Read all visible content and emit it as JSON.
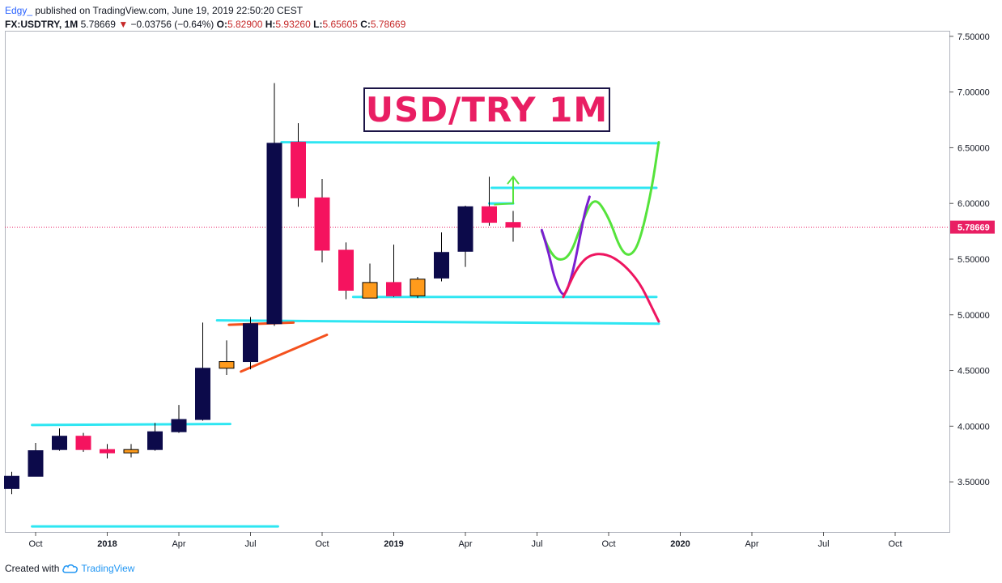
{
  "header": {
    "author": "Edgy_",
    "published_text": "published on TradingView.com, June 19, 2019 22:50:20 CEST",
    "symbol": "FX:USDTRY, 1M",
    "last": "5.78669",
    "change": "−0.03756 (−0.64%)",
    "open_label": "O:",
    "open": "5.82900",
    "high_label": "H:",
    "high": "5.93260",
    "low_label": "L:",
    "low": "5.65605",
    "close_label": "C:",
    "close": "5.78669"
  },
  "footer": {
    "created_with": "Created with",
    "brand": "TradingView"
  },
  "colors": {
    "bull": "#0c0a4a",
    "bear": "#f5135f",
    "neutral": "#ff9b1c",
    "support": "#2ee6f2",
    "trend": "#f4511e",
    "green_path": "#55e33b",
    "purple_path": "#7b1fd1",
    "red_path": "#ee1560",
    "last_price": "#e91e63"
  },
  "chart_data": {
    "type": "candlestick",
    "title": "USD/TRY 1M",
    "symbol": "FX:USDTRY",
    "timeframe": "1M",
    "y_range": [
      3.05,
      7.55
    ],
    "y_ticks": [
      "3.50000",
      "4.00000",
      "4.50000",
      "5.00000",
      "5.50000",
      "6.00000",
      "6.50000",
      "7.00000",
      "7.50000"
    ],
    "x_tick_labels": [
      {
        "label": "Oct",
        "bold": false,
        "month_index": 0
      },
      {
        "label": "2018",
        "bold": true,
        "month_index": 3
      },
      {
        "label": "Apr",
        "bold": false,
        "month_index": 6
      },
      {
        "label": "Jul",
        "bold": false,
        "month_index": 9
      },
      {
        "label": "Oct",
        "bold": false,
        "month_index": 12
      },
      {
        "label": "2019",
        "bold": true,
        "month_index": 15
      },
      {
        "label": "Apr",
        "bold": false,
        "month_index": 18
      },
      {
        "label": "Jul",
        "bold": false,
        "month_index": 21
      },
      {
        "label": "Oct",
        "bold": false,
        "month_index": 24
      },
      {
        "label": "2020",
        "bold": true,
        "month_index": 27
      },
      {
        "label": "Apr",
        "bold": false,
        "month_index": 30
      },
      {
        "label": "Jul",
        "bold": false,
        "month_index": 33
      },
      {
        "label": "Oct",
        "bold": false,
        "month_index": 36
      }
    ],
    "last_price": 5.78669,
    "last_price_label": "5.78669",
    "candles": [
      {
        "date": "2017-09",
        "o": 3.44,
        "h": 3.59,
        "l": 3.39,
        "c": 3.55
      },
      {
        "date": "2017-10",
        "o": 3.55,
        "h": 3.85,
        "l": 3.55,
        "c": 3.78
      },
      {
        "date": "2017-11",
        "o": 3.79,
        "h": 3.98,
        "l": 3.78,
        "c": 3.91
      },
      {
        "date": "2017-12",
        "o": 3.91,
        "h": 3.94,
        "l": 3.77,
        "c": 3.79
      },
      {
        "date": "2018-01",
        "o": 3.79,
        "h": 3.84,
        "l": 3.71,
        "c": 3.76
      },
      {
        "date": "2018-02",
        "o": 3.76,
        "h": 3.84,
        "l": 3.72,
        "c": 3.79
      },
      {
        "date": "2018-03",
        "o": 3.79,
        "h": 4.03,
        "l": 3.78,
        "c": 3.95
      },
      {
        "date": "2018-04",
        "o": 3.95,
        "h": 4.19,
        "l": 3.94,
        "c": 4.06
      },
      {
        "date": "2018-05",
        "o": 4.06,
        "h": 4.93,
        "l": 4.05,
        "c": 4.52
      },
      {
        "date": "2018-06",
        "o": 4.52,
        "h": 4.77,
        "l": 4.46,
        "c": 4.58
      },
      {
        "date": "2018-07",
        "o": 4.58,
        "h": 4.98,
        "l": 4.51,
        "c": 4.92
      },
      {
        "date": "2018-08",
        "o": 4.92,
        "h": 7.08,
        "l": 4.9,
        "c": 6.54
      },
      {
        "date": "2018-09",
        "o": 6.55,
        "h": 6.72,
        "l": 5.97,
        "c": 6.05
      },
      {
        "date": "2018-10",
        "o": 6.05,
        "h": 6.22,
        "l": 5.47,
        "c": 5.58
      },
      {
        "date": "2018-11",
        "o": 5.58,
        "h": 5.65,
        "l": 5.14,
        "c": 5.22
      },
      {
        "date": "2018-12",
        "o": 5.29,
        "h": 5.46,
        "l": 5.15,
        "c": 5.15
      },
      {
        "date": "2019-01",
        "o": 5.29,
        "h": 5.63,
        "l": 5.16,
        "c": 5.17
      },
      {
        "date": "2019-02",
        "o": 5.17,
        "h": 5.34,
        "l": 5.15,
        "c": 5.32
      },
      {
        "date": "2019-03",
        "o": 5.33,
        "h": 5.74,
        "l": 5.3,
        "c": 5.56
      },
      {
        "date": "2019-04",
        "o": 5.57,
        "h": 5.98,
        "l": 5.43,
        "c": 5.97
      },
      {
        "date": "2019-05",
        "o": 5.97,
        "h": 6.24,
        "l": 5.8,
        "c": 5.83
      },
      {
        "date": "2019-06",
        "o": 5.829,
        "h": 5.9326,
        "l": 5.65605,
        "c": 5.78669
      }
    ],
    "support_lines": [
      {
        "name": "base-support",
        "points": [
          [
            -0.15,
            3.1
          ],
          [
            10.15,
            3.1
          ]
        ]
      },
      {
        "name": "2017-resistance",
        "points": [
          [
            -0.15,
            4.01
          ],
          [
            8.15,
            4.02
          ]
        ]
      },
      {
        "name": "breakout-level",
        "points": [
          [
            7.6,
            4.95
          ],
          [
            26.1,
            4.92
          ]
        ]
      },
      {
        "name": "range-top",
        "points": [
          [
            10.3,
            6.55
          ],
          [
            26.1,
            6.54
          ]
        ]
      },
      {
        "name": "range-bottom",
        "points": [
          [
            13.3,
            5.16
          ],
          [
            26.0,
            5.16
          ]
        ]
      },
      {
        "name": "mid-resistance",
        "points": [
          [
            19.1,
            6.14
          ],
          [
            26.0,
            6.14
          ]
        ]
      },
      {
        "name": "apr-small",
        "points": [
          [
            19.0,
            6.0
          ],
          [
            20.0,
            6.0
          ]
        ]
      }
    ],
    "trend_lines": [
      {
        "name": "rising-trend",
        "points": [
          [
            8.6,
            4.49
          ],
          [
            12.2,
            4.82
          ]
        ]
      },
      {
        "name": "flag-top",
        "points": [
          [
            8.1,
            4.91
          ],
          [
            10.8,
            4.93
          ]
        ]
      }
    ],
    "projection_paths": [
      {
        "name": "green-path",
        "points": [
          [
            21.2,
            5.75
          ],
          [
            21.5,
            5.58
          ],
          [
            21.9,
            5.48
          ],
          [
            22.4,
            5.53
          ],
          [
            22.9,
            5.84
          ],
          [
            23.4,
            6.07
          ],
          [
            24.0,
            5.88
          ],
          [
            24.5,
            5.58
          ],
          [
            24.9,
            5.52
          ],
          [
            25.3,
            5.65
          ],
          [
            25.8,
            6.12
          ],
          [
            26.1,
            6.55
          ]
        ]
      },
      {
        "name": "purple-path",
        "points": [
          [
            21.2,
            5.76
          ],
          [
            21.5,
            5.55
          ],
          [
            21.7,
            5.35
          ],
          [
            22.0,
            5.19
          ],
          [
            22.2,
            5.18
          ],
          [
            22.5,
            5.38
          ],
          [
            22.8,
            5.7
          ],
          [
            23.0,
            5.92
          ],
          [
            23.2,
            6.06
          ]
        ]
      },
      {
        "name": "red-path",
        "points": [
          [
            22.1,
            5.16
          ],
          [
            22.3,
            5.25
          ],
          [
            22.7,
            5.43
          ],
          [
            23.2,
            5.54
          ],
          [
            23.9,
            5.55
          ],
          [
            24.6,
            5.46
          ],
          [
            25.3,
            5.29
          ],
          [
            25.8,
            5.07
          ],
          [
            26.1,
            4.94
          ]
        ]
      },
      {
        "name": "arrow-shaft",
        "points": [
          [
            19.2,
            5.99
          ],
          [
            20.0,
            6.0
          ],
          [
            20.0,
            6.24
          ]
        ]
      }
    ]
  }
}
